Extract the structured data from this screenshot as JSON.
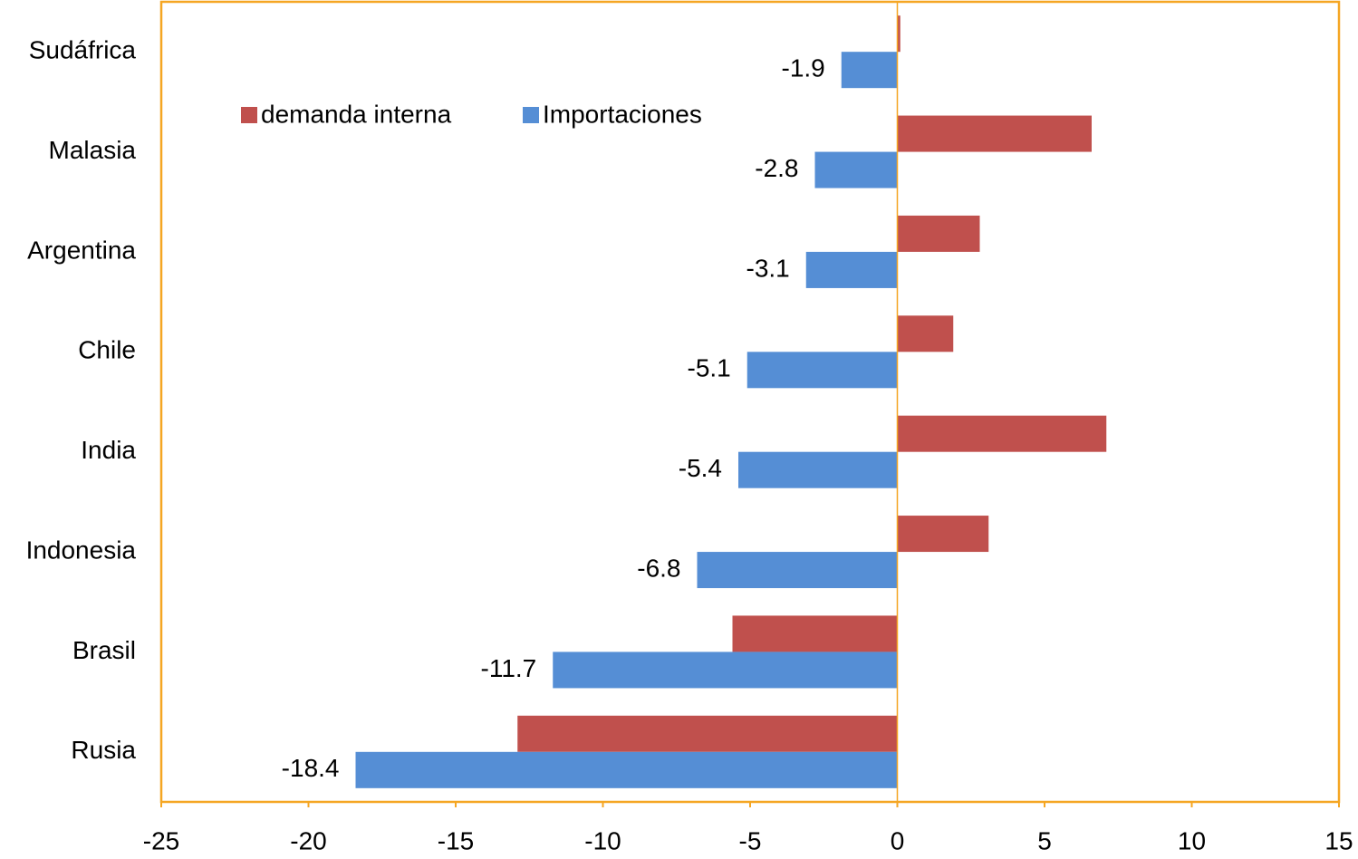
{
  "chart_data": {
    "type": "bar",
    "orientation": "horizontal",
    "categories": [
      "Sudáfrica",
      "Malasia",
      "Argentina",
      "Chile",
      "India",
      "Indonesia",
      "Brasil",
      "Rusia"
    ],
    "series": [
      {
        "name": "demanda interna",
        "color": "#c0504d",
        "values": [
          0.1,
          6.6,
          2.8,
          1.9,
          7.1,
          3.1,
          -5.6,
          -12.9
        ]
      },
      {
        "name": "Importaciones",
        "color": "#558ed5",
        "values": [
          -1.9,
          -2.8,
          -3.1,
          -5.1,
          -5.4,
          -6.8,
          -11.7,
          -18.4
        ],
        "data_labels": true
      }
    ],
    "xlim": [
      -25,
      15
    ],
    "xticks": [
      -25,
      -20,
      -15,
      -10,
      -5,
      0,
      5,
      10,
      15
    ],
    "grid": false,
    "frame_color": "#f5a623"
  }
}
